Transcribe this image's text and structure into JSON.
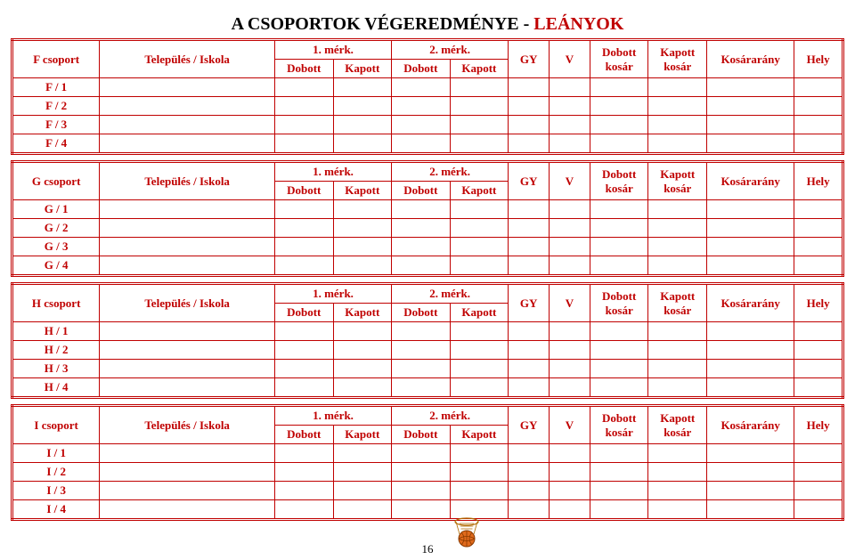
{
  "title": {
    "black": "A CSOPORTOK VÉGEREDMÉNYE - ",
    "red": "LEÁNYOK"
  },
  "hdr": {
    "telepules": "Település / Iskola",
    "m1": "1. mérk.",
    "m2": "2. mérk.",
    "dobott": "Dobott",
    "kapott": "Kapott",
    "gy": "GY",
    "v": "V",
    "dkosar": "Dobott kosár",
    "kkosar": "Kapott kosár",
    "arany": "Kosárarány",
    "hely": "Hely"
  },
  "groups": [
    {
      "name": "F csoport",
      "rows": [
        "F / 1",
        "F / 2",
        "F / 3",
        "F / 4"
      ]
    },
    {
      "name": "G csoport",
      "rows": [
        "G / 1",
        "G / 2",
        "G / 3",
        "G / 4"
      ]
    },
    {
      "name": "H csoport",
      "rows": [
        "H / 1",
        "H / 2",
        "H / 3",
        "H / 4"
      ]
    },
    {
      "name": "I csoport",
      "rows": [
        "I / 1",
        "I / 2",
        "I / 3",
        "I / 4"
      ]
    }
  ],
  "pagenum": "16",
  "colors": {
    "border": "#c00000",
    "title_red": "#c00000"
  }
}
